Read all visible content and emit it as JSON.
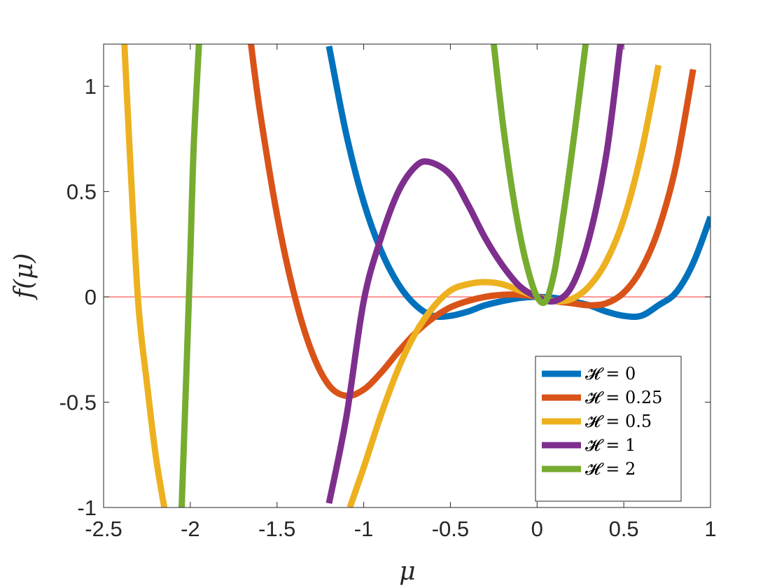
{
  "chart_data": {
    "type": "line",
    "xlabel": "μ",
    "ylabel": "f(μ)",
    "xlim": [
      -2.5,
      1
    ],
    "ylim": [
      -1,
      1.2
    ],
    "xticks": [
      -2.5,
      -2,
      -1.5,
      -1,
      -0.5,
      0,
      0.5,
      1
    ],
    "xtick_labels": [
      "-2.5",
      "-2",
      "-1.5",
      "-1",
      "-0.5",
      "0",
      "0.5",
      "1"
    ],
    "yticks": [
      -1,
      -0.5,
      0,
      0.5,
      1
    ],
    "ytick_labels": [
      "-1",
      "-0.5",
      "0",
      "0.5",
      "1"
    ],
    "grid": false,
    "legend_position": "bottom-right",
    "reference_line": {
      "y": 0,
      "color": "#ff5a5a"
    },
    "series": [
      {
        "name": "𝓗 = 0",
        "color": "#0072bd",
        "x": [
          -1.2,
          -1.1,
          -1.0,
          -0.9,
          -0.8,
          -0.7,
          -0.6,
          -0.5,
          -0.4,
          -0.3,
          -0.2,
          -0.1,
          0.0,
          0.1,
          0.2,
          0.3,
          0.4,
          0.5,
          0.6,
          0.7,
          0.8,
          0.9,
          1.0
        ],
        "y": [
          1.19,
          0.77,
          0.45,
          0.22,
          0.06,
          -0.04,
          -0.09,
          -0.09,
          -0.07,
          -0.04,
          -0.02,
          -0.005,
          0.0,
          -0.005,
          -0.02,
          -0.04,
          -0.07,
          -0.09,
          -0.09,
          -0.04,
          0.02,
          0.16,
          0.38
        ]
      },
      {
        "name": "𝓗 = 0.25",
        "color": "#d95319",
        "x": [
          -1.65,
          -1.6,
          -1.5,
          -1.4,
          -1.3,
          -1.2,
          -1.1,
          -1.0,
          -0.9,
          -0.8,
          -0.7,
          -0.6,
          -0.5,
          -0.4,
          -0.3,
          -0.2,
          -0.1,
          0.0,
          0.1,
          0.2,
          0.3,
          0.4,
          0.5,
          0.6,
          0.7,
          0.8,
          0.9
        ],
        "y": [
          1.2,
          0.89,
          0.39,
          0.01,
          -0.26,
          -0.42,
          -0.47,
          -0.44,
          -0.36,
          -0.26,
          -0.17,
          -0.1,
          -0.05,
          -0.02,
          0.0,
          0.01,
          0.01,
          0.0,
          -0.02,
          -0.03,
          -0.04,
          -0.03,
          0.02,
          0.13,
          0.32,
          0.62,
          1.08
        ]
      },
      {
        "name": "𝓗 = 0.5",
        "color": "#edb120",
        "x": [
          -2.38,
          -2.35,
          -2.3,
          -2.25,
          -2.2,
          -2.15,
          -1.08,
          -1.0,
          -0.9,
          -0.8,
          -0.7,
          -0.6,
          -0.5,
          -0.4,
          -0.3,
          -0.2,
          -0.1,
          0.0,
          0.1,
          0.2,
          0.3,
          0.4,
          0.5,
          0.6,
          0.7
        ],
        "y": [
          1.2,
          0.7,
          -0.03,
          -0.41,
          -0.75,
          -1.0,
          -1.0,
          -0.81,
          -0.56,
          -0.34,
          -0.17,
          -0.05,
          0.03,
          0.06,
          0.07,
          0.06,
          0.03,
          0.0,
          -0.02,
          -0.01,
          0.05,
          0.17,
          0.37,
          0.68,
          1.1
        ]
      },
      {
        "name": "𝓗 = 1",
        "color": "#7e2f8e",
        "x": [
          -1.2,
          -1.1,
          -1.0,
          -0.9,
          -0.8,
          -0.7,
          -0.62,
          -0.5,
          -0.4,
          -0.3,
          -0.2,
          -0.1,
          0.0,
          0.1,
          0.2,
          0.3,
          0.4,
          0.48
        ],
        "y": [
          -0.98,
          -0.57,
          -0.02,
          0.28,
          0.5,
          0.62,
          0.64,
          0.58,
          0.44,
          0.28,
          0.15,
          0.05,
          0.0,
          -0.02,
          0.05,
          0.28,
          0.68,
          1.2
        ]
      },
      {
        "name": "𝓗 = 2",
        "color": "#77ac30",
        "x": [
          -2.05,
          -2.02,
          -2.0,
          -1.98,
          -1.95,
          -0.25,
          -0.2,
          -0.15,
          -0.1,
          -0.05,
          0.0,
          0.05,
          0.1,
          0.15,
          0.2,
          0.25,
          0.28
        ],
        "y": [
          -1.0,
          -0.3,
          0.2,
          0.72,
          1.2,
          1.2,
          0.84,
          0.54,
          0.3,
          0.12,
          0.0,
          -0.02,
          0.12,
          0.38,
          0.68,
          1.0,
          1.2
        ]
      }
    ]
  }
}
